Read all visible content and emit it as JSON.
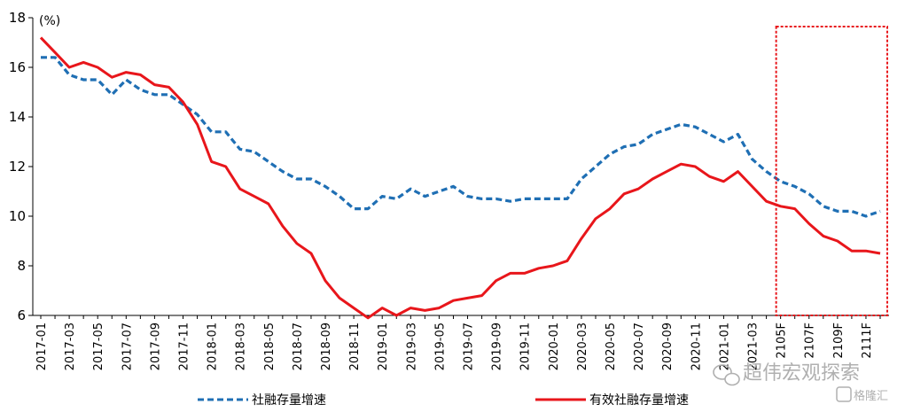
{
  "chart_data": {
    "type": "line",
    "title": "",
    "xlabel": "",
    "ylabel": "",
    "unit_label": "(%)",
    "ylim": [
      6,
      18
    ],
    "y_ticks": [
      6,
      8,
      10,
      12,
      14,
      16,
      18
    ],
    "grid": false,
    "legend_position": "bottom",
    "x": [
      "2017-01",
      "2017-02",
      "2017-03",
      "2017-04",
      "2017-05",
      "2017-06",
      "2017-07",
      "2017-08",
      "2017-09",
      "2017-10",
      "2017-11",
      "2017-12",
      "2018-01",
      "2018-02",
      "2018-03",
      "2018-04",
      "2018-05",
      "2018-06",
      "2018-07",
      "2018-08",
      "2018-09",
      "2018-10",
      "2018-11",
      "2018-12",
      "2019-01",
      "2019-02",
      "2019-03",
      "2019-04",
      "2019-05",
      "2019-06",
      "2019-07",
      "2019-08",
      "2019-09",
      "2019-10",
      "2019-11",
      "2019-12",
      "2020-01",
      "2020-02",
      "2020-03",
      "2020-04",
      "2020-05",
      "2020-06",
      "2020-07",
      "2020-08",
      "2020-09",
      "2020-10",
      "2020-11",
      "2020-12",
      "2021-01",
      "2021-02",
      "2021-03",
      "2021-04",
      "2021-05F",
      "2021-06F",
      "2021-07F",
      "2021-08F",
      "2021-09F",
      "2021-10F",
      "2021-11F",
      "2021-12F"
    ],
    "x_tick_labels": [
      "2017-01",
      "2017-03",
      "2017-05",
      "2017-07",
      "2017-09",
      "2017-11",
      "2018-01",
      "2018-03",
      "2018-05",
      "2018-07",
      "2018-09",
      "2018-11",
      "2019-01",
      "2019-03",
      "2019-05",
      "2019-07",
      "2019-09",
      "2019-11",
      "2020-01",
      "2020-03",
      "2020-05",
      "2020-07",
      "2020-09",
      "2020-11",
      "2021-01",
      "2021-03",
      "2021-05F",
      "2021-07F",
      "2021-09F",
      "2021-11F"
    ],
    "x_tick_display": [
      "2017-01",
      "2017-03",
      "2017-05",
      "2017-07",
      "2017-09",
      "2017-11",
      "2018-01",
      "2018-03",
      "2018-05",
      "2018-07",
      "2018-09",
      "2018-11",
      "2019-01",
      "2019-03",
      "2019-05",
      "2019-07",
      "2019-09",
      "2019-11",
      "2020-01",
      "2020-03",
      "2020-05",
      "2020-07",
      "2020-09",
      "2020-11",
      "2021-01",
      "2021-03",
      "2105F",
      "2107F",
      "2109F",
      "2111F"
    ],
    "series": [
      {
        "name": "社融存量增速",
        "color": "#1f6fb4",
        "style": "dashed",
        "values": [
          16.4,
          16.4,
          15.7,
          15.5,
          15.5,
          14.9,
          15.5,
          15.1,
          14.9,
          14.9,
          14.5,
          14.1,
          13.4,
          13.4,
          12.7,
          12.6,
          12.2,
          11.8,
          11.5,
          11.5,
          11.2,
          10.8,
          10.3,
          10.3,
          10.8,
          10.7,
          11.1,
          10.8,
          11.0,
          11.2,
          10.8,
          10.7,
          10.7,
          10.6,
          10.7,
          10.7,
          10.7,
          10.7,
          11.5,
          12.0,
          12.5,
          12.8,
          12.9,
          13.3,
          13.5,
          13.7,
          13.6,
          13.3,
          13.0,
          13.3,
          12.3,
          11.8,
          11.4,
          11.2,
          10.9,
          10.4,
          10.2,
          10.2,
          10.0,
          10.2
        ]
      },
      {
        "name": "有效社融存量增速",
        "color": "#e8161b",
        "style": "solid",
        "values": [
          17.2,
          16.6,
          16.0,
          16.2,
          16.0,
          15.6,
          15.8,
          15.7,
          15.3,
          15.2,
          14.6,
          13.7,
          12.2,
          12.0,
          11.1,
          10.8,
          10.5,
          9.6,
          8.9,
          8.5,
          7.4,
          6.7,
          6.3,
          5.9,
          6.3,
          6.0,
          6.3,
          6.2,
          6.3,
          6.6,
          6.7,
          6.8,
          7.4,
          7.7,
          7.7,
          7.9,
          8.0,
          8.2,
          9.1,
          9.9,
          10.3,
          10.9,
          11.1,
          11.5,
          11.8,
          12.1,
          12.0,
          11.6,
          11.4,
          11.8,
          11.2,
          10.6,
          10.4,
          10.3,
          9.7,
          9.2,
          9.0,
          8.6,
          8.6,
          8.5
        ]
      }
    ],
    "highlight_box": {
      "color": "#e8161b",
      "style": "dashed",
      "from_x": "2021-05F",
      "to_x": "2021-12F"
    }
  },
  "watermark": {
    "text": "超伟宏观探索",
    "logo": "格隆汇",
    "icon": "wechat-icon"
  }
}
